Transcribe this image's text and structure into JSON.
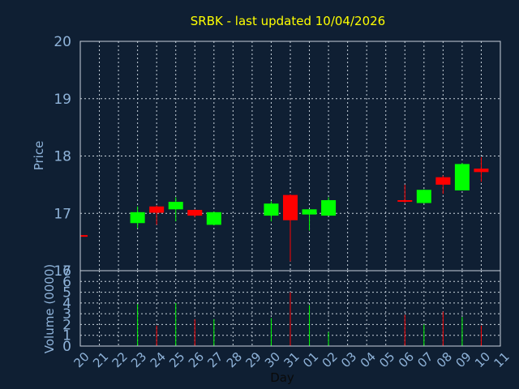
{
  "chart_data": {
    "type": "candlestick",
    "title": "SRBK - last updated 10/04/2026",
    "xlabel": "Day",
    "price_axis_label": "Price",
    "volume_axis_label": "Volume (0000)",
    "price_ylim": [
      16,
      20
    ],
    "price_ticks": [
      16,
      17,
      18,
      19,
      20
    ],
    "volume_ylim": [
      0,
      7
    ],
    "volume_ticks": [
      0,
      1,
      2,
      3,
      4,
      5,
      6,
      7
    ],
    "x_tick_labels": [
      "20",
      "21",
      "22",
      "23",
      "24",
      "25",
      "26",
      "27",
      "28",
      "29",
      "30",
      "31",
      "01",
      "02",
      "03",
      "04",
      "05",
      "06",
      "07",
      "08",
      "09",
      "10",
      "11"
    ],
    "grid": true,
    "colors": {
      "background": "#0f1f33",
      "up": "#00ff00",
      "down": "#ff0000",
      "title": "#ffff00",
      "label": "#8fb3d9"
    },
    "candles": [
      {
        "day": "20",
        "open": 16.62,
        "close": 16.6,
        "high": 16.63,
        "low": 16.6,
        "volume": 0.0
      },
      {
        "day": "23",
        "open": 16.83,
        "close": 17.02,
        "high": 17.12,
        "low": 16.74,
        "volume": 3.9
      },
      {
        "day": "24",
        "open": 17.12,
        "close": 17.01,
        "high": 17.14,
        "low": 16.8,
        "volume": 1.9
      },
      {
        "day": "25",
        "open": 17.07,
        "close": 17.2,
        "high": 17.28,
        "low": 16.86,
        "volume": 4.0
      },
      {
        "day": "26",
        "open": 17.06,
        "close": 16.96,
        "high": 17.07,
        "low": 16.93,
        "volume": 2.5
      },
      {
        "day": "27",
        "open": 16.8,
        "close": 17.02,
        "high": 17.03,
        "low": 16.79,
        "volume": 2.5
      },
      {
        "day": "30",
        "open": 16.96,
        "close": 17.17,
        "high": 17.21,
        "low": 16.86,
        "volume": 2.6
      },
      {
        "day": "31",
        "open": 17.32,
        "close": 16.88,
        "high": 17.33,
        "low": 16.16,
        "volume": 5.0
      },
      {
        "day": "01",
        "open": 16.98,
        "close": 17.07,
        "high": 17.07,
        "low": 16.7,
        "volume": 3.8
      },
      {
        "day": "02",
        "open": 16.96,
        "close": 17.23,
        "high": 17.28,
        "low": 16.96,
        "volume": 1.3
      },
      {
        "day": "06",
        "open": 17.23,
        "close": 17.22,
        "high": 17.5,
        "low": 17.18,
        "volume": 2.9
      },
      {
        "day": "07",
        "open": 17.18,
        "close": 17.41,
        "high": 17.42,
        "low": 17.17,
        "volume": 2.0
      },
      {
        "day": "08",
        "open": 17.63,
        "close": 17.5,
        "high": 17.66,
        "low": 17.34,
        "volume": 3.2
      },
      {
        "day": "09",
        "open": 17.4,
        "close": 17.86,
        "high": 17.88,
        "low": 17.4,
        "volume": 2.7
      },
      {
        "day": "10",
        "open": 17.78,
        "close": 17.72,
        "high": 17.98,
        "low": 17.55,
        "volume": 1.9
      }
    ]
  }
}
